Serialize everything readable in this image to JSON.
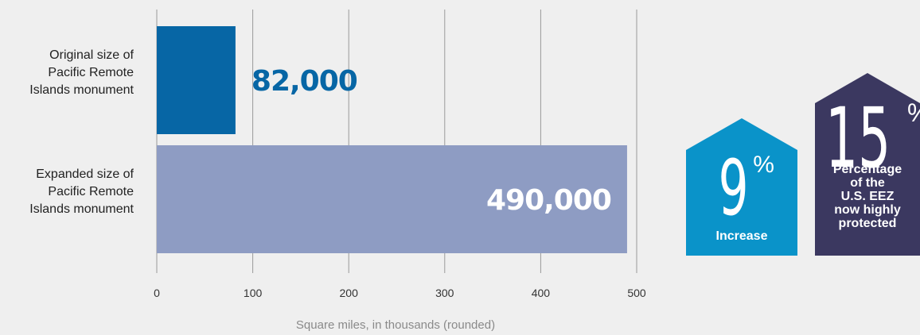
{
  "chart_data": {
    "type": "bar",
    "orientation": "horizontal",
    "categories": [
      [
        "Original size of",
        "Pacific Remote",
        "Islands monument"
      ],
      [
        "Expanded size of",
        "Pacific Remote",
        "Islands monument"
      ]
    ],
    "values": [
      82,
      490
    ],
    "data_labels": [
      "82,000",
      "490,000"
    ],
    "colors": [
      "#0766a5",
      "#8e9cc3"
    ],
    "label_colors": [
      "#0766a5",
      "#ffffff"
    ],
    "xlim": [
      0,
      500
    ],
    "xticks": [
      0,
      100,
      200,
      300,
      400,
      500
    ],
    "xlabel": "Square miles, in thousands (rounded)",
    "grid": true
  },
  "badges": {
    "increase": {
      "value": "9",
      "unit": "%",
      "caption": "Increase",
      "color": "#0a93c9"
    },
    "protected": {
      "value": "15",
      "unit": "%",
      "caption": [
        "Percentage",
        "of the",
        "U.S. EEZ",
        "now highly",
        "protected"
      ],
      "color": "#3b3860"
    }
  }
}
